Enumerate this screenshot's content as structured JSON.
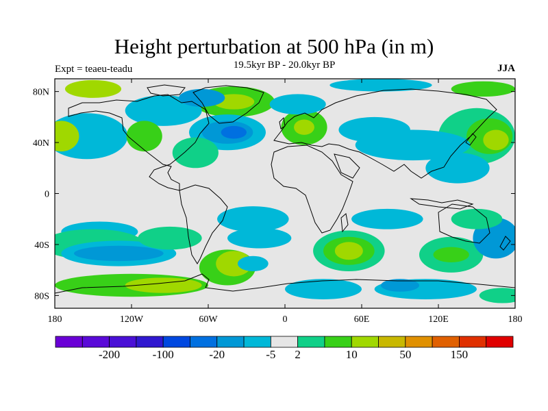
{
  "title": "Height perturbation at 500 hPa (in m)",
  "subtitle": "19.5kyr BP - 20.0kyr BP",
  "left_label": "Expt = teaeu-teadu",
  "right_label": "JJA",
  "map": {
    "projection": "equirectangular",
    "lon_range": [
      -180,
      180
    ],
    "lat_range": [
      -90,
      90
    ],
    "background_color": "#e6e6e6",
    "coastline_color": "#000000",
    "x_ticks": [
      {
        "lon": -180,
        "label": "180"
      },
      {
        "lon": -120,
        "label": "120W"
      },
      {
        "lon": -60,
        "label": "60W"
      },
      {
        "lon": 0,
        "label": "0"
      },
      {
        "lon": 60,
        "label": "60E"
      },
      {
        "lon": 120,
        "label": "120E"
      },
      {
        "lon": 180,
        "label": "180"
      }
    ],
    "y_ticks": [
      {
        "lat": 80,
        "label": "80N"
      },
      {
        "lat": 40,
        "label": "40N"
      },
      {
        "lat": 0,
        "label": "0"
      },
      {
        "lat": -40,
        "label": "40S"
      },
      {
        "lat": -80,
        "label": "80S"
      }
    ],
    "anomaly_blobs": [
      {
        "lon": -150,
        "lat": 82,
        "rlon": 22,
        "rlat": 7,
        "level": 11
      },
      {
        "lon": -40,
        "lat": 72,
        "rlon": 32,
        "rlat": 12,
        "level": 10
      },
      {
        "lon": -40,
        "lat": 72,
        "rlon": 16,
        "rlat": 6,
        "level": 11
      },
      {
        "lon": -95,
        "lat": 65,
        "rlon": 30,
        "rlat": 12,
        "level": 7
      },
      {
        "lon": -65,
        "lat": 75,
        "rlon": 18,
        "rlat": 7,
        "level": 6
      },
      {
        "lon": -45,
        "lat": 48,
        "rlon": 30,
        "rlat": 14,
        "level": 7
      },
      {
        "lon": -45,
        "lat": 48,
        "rlon": 20,
        "rlat": 9,
        "level": 6
      },
      {
        "lon": -40,
        "lat": 48,
        "rlon": 10,
        "rlat": 5,
        "level": 5
      },
      {
        "lon": -70,
        "lat": 32,
        "rlon": 18,
        "rlat": 12,
        "level": 9
      },
      {
        "lon": -155,
        "lat": 45,
        "rlon": 32,
        "rlat": 18,
        "level": 7
      },
      {
        "lon": -110,
        "lat": 45,
        "rlon": 14,
        "rlat": 12,
        "level": 10
      },
      {
        "lon": -175,
        "lat": 45,
        "rlon": 14,
        "rlat": 12,
        "level": 11
      },
      {
        "lon": 15,
        "lat": 52,
        "rlon": 18,
        "rlat": 14,
        "level": 10
      },
      {
        "lon": 15,
        "lat": 52,
        "rlon": 8,
        "rlat": 6,
        "level": 11
      },
      {
        "lon": 10,
        "lat": 70,
        "rlon": 22,
        "rlat": 8,
        "level": 7
      },
      {
        "lon": 70,
        "lat": 50,
        "rlon": 28,
        "rlat": 10,
        "level": 7
      },
      {
        "lon": 75,
        "lat": 85,
        "rlon": 40,
        "rlat": 5,
        "level": 7
      },
      {
        "lon": 155,
        "lat": 82,
        "rlon": 25,
        "rlat": 6,
        "level": 10
      },
      {
        "lon": 150,
        "lat": 45,
        "rlon": 30,
        "rlat": 22,
        "level": 9
      },
      {
        "lon": 160,
        "lat": 45,
        "rlon": 18,
        "rlat": 14,
        "level": 10
      },
      {
        "lon": 165,
        "lat": 42,
        "rlon": 10,
        "rlat": 8,
        "level": 11
      },
      {
        "lon": 100,
        "lat": 38,
        "rlon": 45,
        "rlat": 12,
        "level": 7
      },
      {
        "lon": 135,
        "lat": 20,
        "rlon": 25,
        "rlat": 12,
        "level": 7
      },
      {
        "lon": -145,
        "lat": -30,
        "rlon": 30,
        "rlat": 8,
        "level": 7
      },
      {
        "lon": -150,
        "lat": -40,
        "rlon": 40,
        "rlat": 12,
        "level": 9
      },
      {
        "lon": -130,
        "lat": -47,
        "rlon": 45,
        "rlat": 10,
        "level": 7
      },
      {
        "lon": -130,
        "lat": -47,
        "rlon": 35,
        "rlat": 6,
        "level": 6
      },
      {
        "lon": -90,
        "lat": -35,
        "rlon": 25,
        "rlat": 9,
        "level": 9
      },
      {
        "lon": -120,
        "lat": -72,
        "rlon": 60,
        "rlat": 9,
        "level": 10
      },
      {
        "lon": -95,
        "lat": -72,
        "rlon": 30,
        "rlat": 6,
        "level": 11
      },
      {
        "lon": -45,
        "lat": -58,
        "rlon": 22,
        "rlat": 14,
        "level": 10
      },
      {
        "lon": -40,
        "lat": -55,
        "rlon": 14,
        "rlat": 10,
        "level": 11
      },
      {
        "lon": -25,
        "lat": -20,
        "rlon": 28,
        "rlat": 10,
        "level": 7
      },
      {
        "lon": -20,
        "lat": -35,
        "rlon": 25,
        "rlat": 8,
        "level": 7
      },
      {
        "lon": -25,
        "lat": -55,
        "rlon": 12,
        "rlat": 6,
        "level": 7
      },
      {
        "lon": 50,
        "lat": -45,
        "rlon": 28,
        "rlat": 16,
        "level": 9
      },
      {
        "lon": 50,
        "lat": -45,
        "rlon": 20,
        "rlat": 11,
        "level": 10
      },
      {
        "lon": 50,
        "lat": -45,
        "rlon": 11,
        "rlat": 7,
        "level": 11
      },
      {
        "lon": 80,
        "lat": -20,
        "rlon": 28,
        "rlat": 8,
        "level": 7
      },
      {
        "lon": 30,
        "lat": -75,
        "rlon": 30,
        "rlat": 8,
        "level": 7
      },
      {
        "lon": 110,
        "lat": -75,
        "rlon": 40,
        "rlat": 8,
        "level": 7
      },
      {
        "lon": 90,
        "lat": -72,
        "rlon": 15,
        "rlat": 5,
        "level": 6
      },
      {
        "lon": 130,
        "lat": -48,
        "rlon": 25,
        "rlat": 14,
        "level": 9
      },
      {
        "lon": 130,
        "lat": -48,
        "rlon": 14,
        "rlat": 6,
        "level": 10
      },
      {
        "lon": 165,
        "lat": -35,
        "rlon": 18,
        "rlat": 16,
        "level": 6
      },
      {
        "lon": 170,
        "lat": -80,
        "rlon": 18,
        "rlat": 6,
        "level": 9
      },
      {
        "lon": 150,
        "lat": -20,
        "rlon": 20,
        "rlat": 8,
        "level": 9
      }
    ]
  },
  "colorbar": {
    "colors": [
      "#6a00d6",
      "#5a0ad8",
      "#4a10d6",
      "#3018d0",
      "#0048e0",
      "#0070e0",
      "#0098d6",
      "#00b8d8",
      "#e6e6e6",
      "#10d088",
      "#38d018",
      "#a0d800",
      "#c8b800",
      "#e09000",
      "#e06000",
      "#e03000",
      "#e00000"
    ],
    "labels": [
      {
        "after_box": 2,
        "text": "-200"
      },
      {
        "after_box": 4,
        "text": "-100"
      },
      {
        "after_box": 6,
        "text": "-20"
      },
      {
        "after_box": 8,
        "text": "-5"
      },
      {
        "after_box": 9,
        "text": "2"
      },
      {
        "after_box": 11,
        "text": "10"
      },
      {
        "after_box": 13,
        "text": "50"
      },
      {
        "after_box": 15,
        "text": "150"
      }
    ]
  }
}
